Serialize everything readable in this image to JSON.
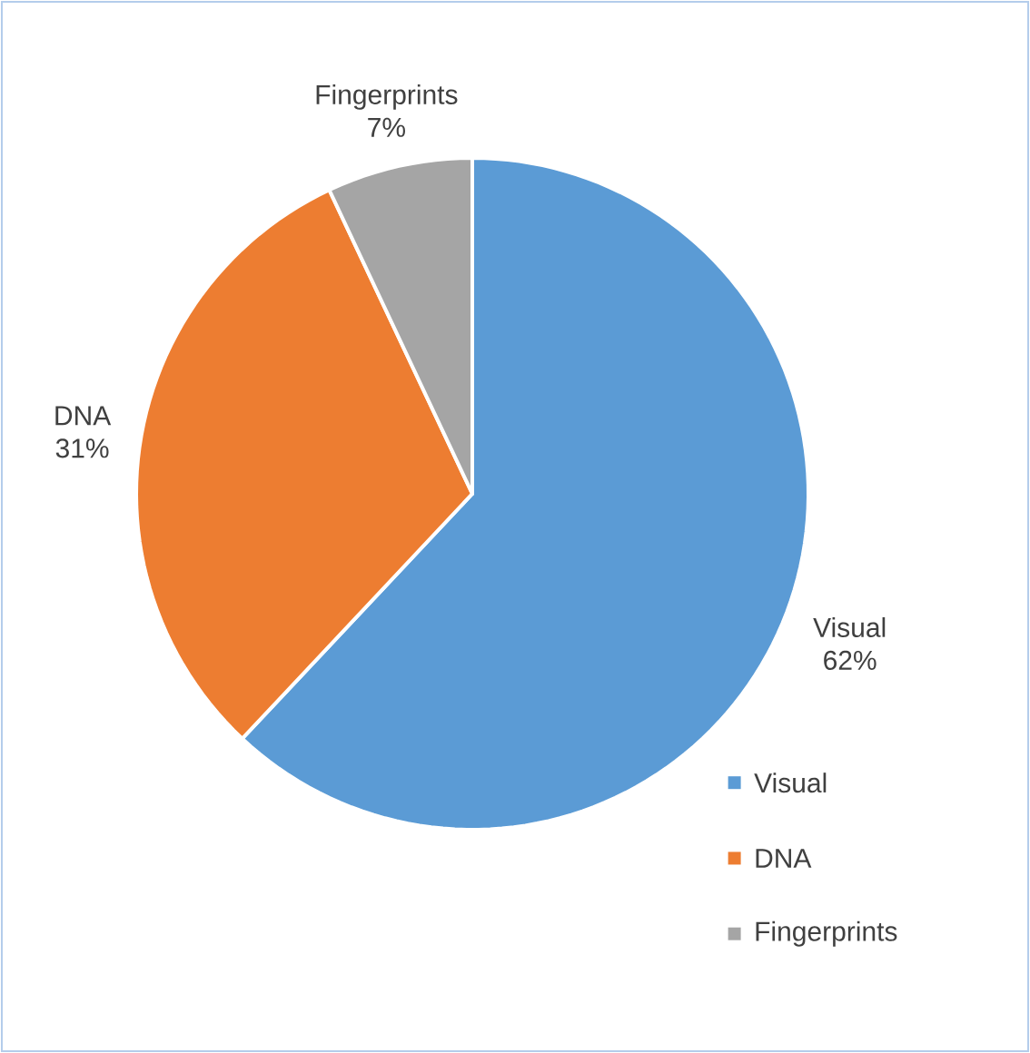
{
  "chart_data": {
    "type": "pie",
    "categories": [
      "Visual",
      "DNA",
      "Fingerprints"
    ],
    "values": [
      62,
      31,
      7
    ],
    "colors": [
      "#5b9bd5",
      "#ed7d31",
      "#a5a5a5"
    ],
    "value_labels": [
      "62%",
      "31%",
      "7%"
    ],
    "legend": "bottom right"
  }
}
